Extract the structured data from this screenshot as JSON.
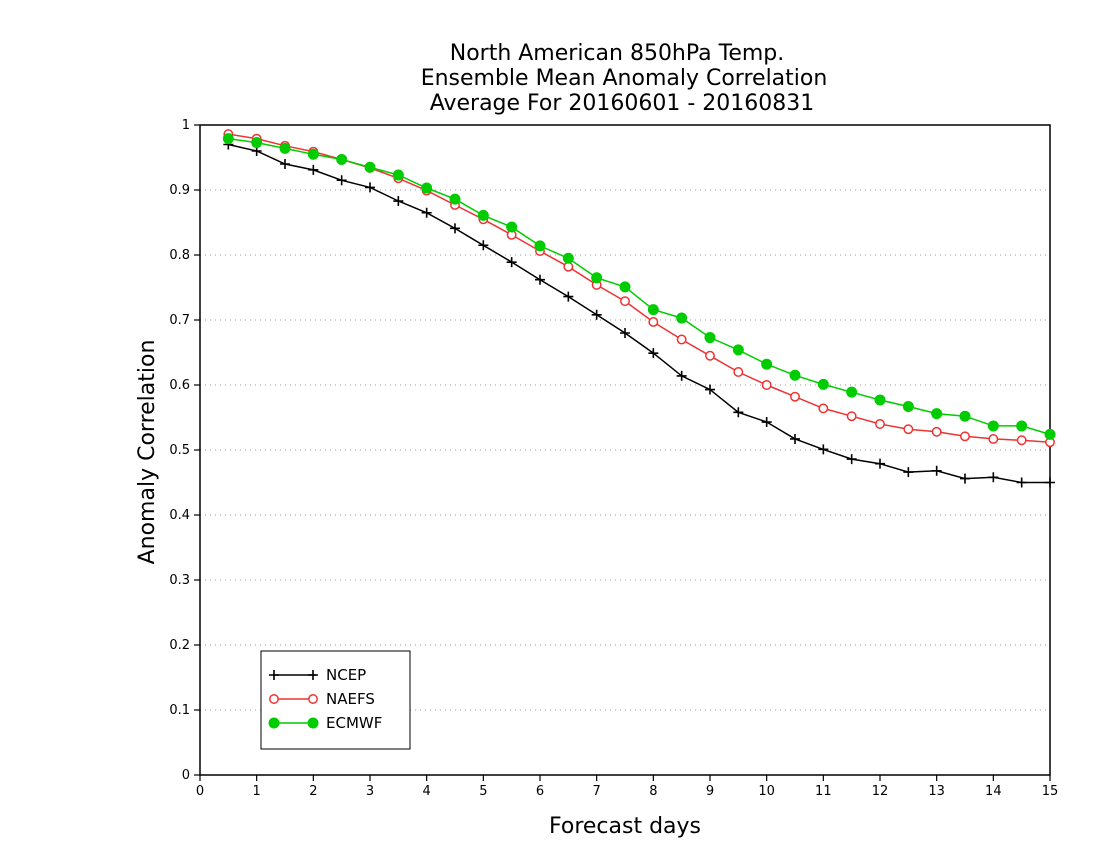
{
  "chart_data": {
    "type": "line",
    "title": [
      "North American 850hPa Temp.",
      "Ensemble Mean Anomaly Correlation",
      "Average For 20160601 - 20160831"
    ],
    "xlabel": "Forecast days",
    "ylabel": "Anomaly Correlation",
    "xlim": [
      0,
      15
    ],
    "ylim": [
      0,
      1
    ],
    "x_ticks": [
      "0",
      "1",
      "2",
      "3",
      "4",
      "5",
      "6",
      "7",
      "8",
      "9",
      "10",
      "11",
      "12",
      "13",
      "14",
      "15"
    ],
    "y_ticks": [
      "0",
      "0.1",
      "0.2",
      "0.3",
      "0.4",
      "0.5",
      "0.6",
      "0.7",
      "0.8",
      "0.9",
      "1"
    ],
    "grid": "horizontal-dotted",
    "legend_position": "bottom-left",
    "x": [
      0.5,
      1,
      1.5,
      2,
      2.5,
      3,
      3.5,
      4,
      4.5,
      5,
      5.5,
      6,
      6.5,
      7,
      7.5,
      8,
      8.5,
      9,
      9.5,
      10,
      10.5,
      11,
      11.5,
      12,
      12.5,
      13,
      13.5,
      14,
      14.5,
      15
    ],
    "series": [
      {
        "name": "NCEP",
        "color": "#000000",
        "marker": "plus",
        "values": [
          0.97,
          0.96,
          0.94,
          0.931,
          0.915,
          0.904,
          0.883,
          0.865,
          0.841,
          0.815,
          0.789,
          0.762,
          0.736,
          0.708,
          0.68,
          0.649,
          0.614,
          0.593,
          0.558,
          0.543,
          0.517,
          0.501,
          0.486,
          0.479,
          0.466,
          0.468,
          0.456,
          0.458,
          0.45,
          0.45
        ]
      },
      {
        "name": "NAEFS",
        "color": "#ee3333",
        "marker": "open-circle",
        "values": [
          0.986,
          0.979,
          0.968,
          0.959,
          0.947,
          0.934,
          0.918,
          0.899,
          0.877,
          0.855,
          0.831,
          0.806,
          0.782,
          0.754,
          0.729,
          0.697,
          0.67,
          0.645,
          0.62,
          0.6,
          0.582,
          0.564,
          0.552,
          0.54,
          0.532,
          0.528,
          0.521,
          0.517,
          0.515,
          0.512
        ]
      },
      {
        "name": "ECMWF",
        "color": "#00cc00",
        "marker": "filled-circle",
        "values": [
          0.979,
          0.973,
          0.964,
          0.955,
          0.947,
          0.935,
          0.923,
          0.903,
          0.886,
          0.861,
          0.843,
          0.814,
          0.795,
          0.765,
          0.751,
          0.716,
          0.703,
          0.673,
          0.654,
          0.632,
          0.615,
          0.601,
          0.589,
          0.577,
          0.567,
          0.556,
          0.552,
          0.537,
          0.537,
          0.524
        ]
      }
    ]
  }
}
